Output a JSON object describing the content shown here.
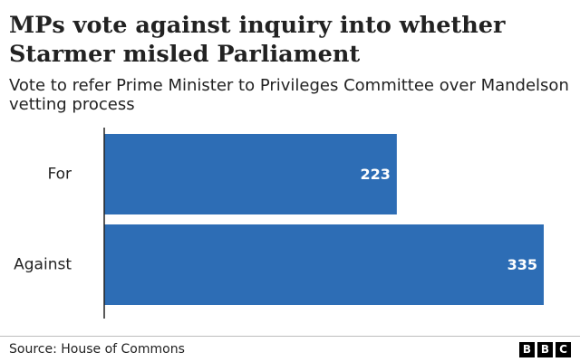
{
  "header": {
    "title": "MPs vote against inquiry into whether Starmer misled Parliament",
    "subtitle": "Vote to refer Prime Minister to Privileges Committee over Mandelson vetting process"
  },
  "chart_data": {
    "type": "bar",
    "orientation": "horizontal",
    "categories": [
      "For",
      "Against"
    ],
    "values": [
      223,
      335
    ],
    "title": "MPs vote against inquiry into whether Starmer misled Parliament",
    "subtitle": "Vote to refer Prime Minister to Privileges Committee over Mandelson vetting process",
    "xlabel": "",
    "ylabel": "",
    "xlim": [
      0,
      335
    ],
    "grid": false,
    "bar_color": "#2d6db5",
    "data_labels": [
      "223",
      "335"
    ]
  },
  "footer": {
    "source": "Source: House of Commons",
    "logo_letters": [
      "B",
      "B",
      "C"
    ]
  }
}
